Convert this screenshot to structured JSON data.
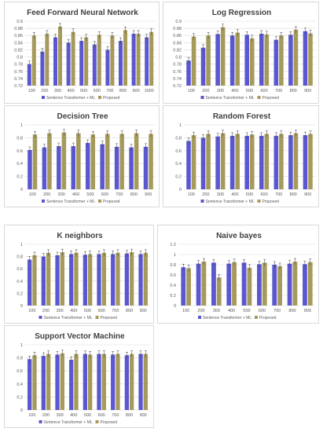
{
  "colors": {
    "baseline": "#5b57cf",
    "proposed": "#a69a5b",
    "grid": "#d9d9d9",
    "error_bar": "#404040"
  },
  "chart_data": [
    {
      "id": "ffnn",
      "type": "bar",
      "title": "Feed Forward Neural Network",
      "categories": [
        "100",
        "200",
        "300",
        "400",
        "500",
        "600",
        "700",
        "800",
        "900",
        "1000"
      ],
      "ylim": [
        0.72,
        0.9
      ],
      "yticks": [
        "0.72",
        "0.74",
        "0.76",
        "0.78",
        "0.8",
        "0.82",
        "0.84",
        "0.86",
        "0.88",
        "0.9"
      ],
      "series": [
        {
          "name": "Sentence Transformer + ML",
          "values": [
            0.78,
            0.815,
            0.855,
            0.84,
            0.845,
            0.835,
            0.82,
            0.845,
            0.865,
            0.855
          ]
        },
        {
          "name": "Proposed",
          "values": [
            0.86,
            0.865,
            0.885,
            0.87,
            0.855,
            0.862,
            0.86,
            0.875,
            0.865,
            0.87
          ]
        }
      ],
      "legend": "bottom"
    },
    {
      "id": "logreg",
      "type": "bar",
      "title": "Log Regression",
      "categories": [
        "100",
        "200",
        "300",
        "400",
        "500",
        "600",
        "700",
        "800",
        "900"
      ],
      "ylim": [
        0.72,
        0.9
      ],
      "yticks": [
        "0.72",
        "0.74",
        "0.76",
        "0.78",
        "0.8",
        "0.82",
        "0.84",
        "0.86",
        "0.88",
        "0.9"
      ],
      "series": [
        {
          "name": "Sentence Transformer + ML",
          "values": [
            0.79,
            0.826,
            0.864,
            0.86,
            0.862,
            0.865,
            0.848,
            0.862,
            0.872
          ]
        },
        {
          "name": "Proposed",
          "values": [
            0.857,
            0.86,
            0.883,
            0.868,
            0.852,
            0.863,
            0.86,
            0.876,
            0.866
          ]
        }
      ],
      "legend": "bottom"
    },
    {
      "id": "dtree",
      "type": "bar",
      "title": "Decision Tree",
      "categories": [
        "100",
        "200",
        "300",
        "400",
        "500",
        "600",
        "700",
        "800",
        "900"
      ],
      "ylim": [
        0,
        1
      ],
      "yticks": [
        "0",
        "0.2",
        "0.4",
        "0.6",
        "0.8",
        "1"
      ],
      "series": [
        {
          "name": "Sentence Transformer + ML",
          "values": [
            0.61,
            0.65,
            0.67,
            0.67,
            0.72,
            0.7,
            0.66,
            0.65,
            0.66
          ]
        },
        {
          "name": "Proposed",
          "values": [
            0.85,
            0.87,
            0.88,
            0.87,
            0.85,
            0.86,
            0.86,
            0.87,
            0.86
          ]
        }
      ],
      "legend": "bottom"
    },
    {
      "id": "rforest",
      "type": "bar",
      "title": "Random Forest",
      "categories": [
        "100",
        "200",
        "300",
        "400",
        "500",
        "600",
        "700",
        "800",
        "900"
      ],
      "ylim": [
        0,
        1
      ],
      "yticks": [
        "0",
        "0.2",
        "0.4",
        "0.6",
        "0.8",
        "1"
      ],
      "series": [
        {
          "name": "Sentence Transformer + ML",
          "values": [
            0.75,
            0.8,
            0.82,
            0.83,
            0.83,
            0.83,
            0.83,
            0.84,
            0.84
          ]
        },
        {
          "name": "Proposed",
          "values": [
            0.84,
            0.86,
            0.87,
            0.86,
            0.85,
            0.86,
            0.86,
            0.87,
            0.86
          ]
        }
      ],
      "legend": "bottom"
    },
    {
      "id": "knn",
      "type": "bar",
      "title": "K neighbors",
      "categories": [
        "100",
        "200",
        "300",
        "400",
        "500",
        "600",
        "700",
        "800",
        "900"
      ],
      "ylim": [
        0,
        1
      ],
      "yticks": [
        "0",
        "0.2",
        "0.4",
        "0.6",
        "0.8",
        "1"
      ],
      "series": [
        {
          "name": "Sentence Transformer + ML",
          "values": [
            0.75,
            0.8,
            0.82,
            0.84,
            0.83,
            0.84,
            0.84,
            0.85,
            0.84
          ]
        },
        {
          "name": "Proposed",
          "values": [
            0.82,
            0.86,
            0.87,
            0.86,
            0.84,
            0.86,
            0.86,
            0.87,
            0.86
          ]
        }
      ],
      "legend": "bottom"
    },
    {
      "id": "nbayes",
      "type": "bar",
      "title": "Naive bayes",
      "categories": [
        "100",
        "200",
        "300",
        "400",
        "500",
        "600",
        "700",
        "800",
        "900"
      ],
      "ylim": [
        0,
        1.2
      ],
      "yticks": [
        "0",
        "0.2",
        "0.4",
        "0.6",
        "0.8",
        "1",
        "1.2"
      ],
      "series": [
        {
          "name": "Sentence Transformer + ML",
          "values": [
            0.75,
            0.82,
            0.84,
            0.82,
            0.84,
            0.81,
            0.8,
            0.82,
            0.81
          ]
        },
        {
          "name": "Proposed",
          "values": [
            0.73,
            0.86,
            0.55,
            0.85,
            0.74,
            0.84,
            0.77,
            0.86,
            0.85
          ]
        }
      ],
      "legend": "bottom"
    },
    {
      "id": "svm",
      "type": "bar",
      "title": "Support Vector Machine",
      "categories": [
        "100",
        "200",
        "300",
        "400",
        "500",
        "600",
        "700",
        "800",
        "900"
      ],
      "ylim": [
        0,
        1
      ],
      "yticks": [
        "0",
        "0.2",
        "0.4",
        "0.6",
        "0.8",
        "1"
      ],
      "series": [
        {
          "name": "Sentence Transformer + ML",
          "values": [
            0.78,
            0.83,
            0.85,
            0.77,
            0.86,
            0.86,
            0.85,
            0.84,
            0.86
          ]
        },
        {
          "name": "Proposed",
          "values": [
            0.84,
            0.86,
            0.87,
            0.86,
            0.85,
            0.86,
            0.86,
            0.86,
            0.86
          ]
        }
      ],
      "legend": "bottom"
    }
  ]
}
